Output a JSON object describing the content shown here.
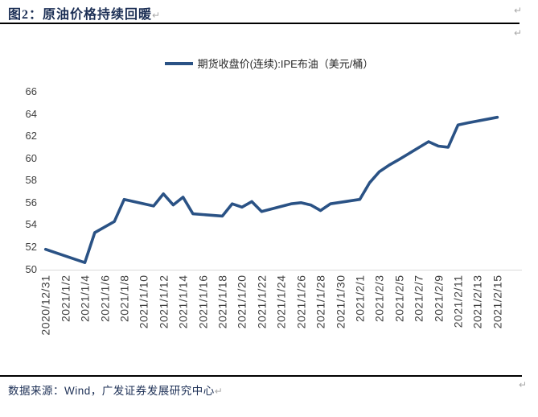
{
  "page": {
    "title": "图2：原油价格持续回暖",
    "footer": "数据来源：Wind，广发证券发展研究中心",
    "return_mark": "↵"
  },
  "chart_data": {
    "type": "line",
    "title": "图2：原油价格持续回暖",
    "legend": [
      "期货收盘价(连续):IPE布油（美元/桶）"
    ],
    "legend_position": "top",
    "grid": false,
    "ylabel": "",
    "xlabel": "",
    "ylim": [
      50,
      66
    ],
    "y_ticks": [
      66,
      64,
      62,
      60,
      58,
      56,
      54,
      52,
      50
    ],
    "x_ticks": [
      "2020/12/31",
      "2021/1/2",
      "2021/1/4",
      "2021/1/6",
      "2021/1/8",
      "2021/1/10",
      "2021/1/12",
      "2021/1/14",
      "2021/1/16",
      "2021/1/18",
      "2021/1/20",
      "2021/1/22",
      "2021/1/24",
      "2021/1/26",
      "2021/1/28",
      "2021/1/30",
      "2021/2/1",
      "2021/2/3",
      "2021/2/5",
      "2021/2/7",
      "2021/2/9",
      "2021/2/11",
      "2021/2/13",
      "2021/2/15"
    ],
    "series": [
      {
        "name": "期货收盘价(连续):IPE布油（美元/桶）",
        "color": "#2A5285",
        "x": [
          "2020/12/31",
          "2021/1/4",
          "2021/1/5",
          "2021/1/6",
          "2021/1/7",
          "2021/1/8",
          "2021/1/11",
          "2021/1/12",
          "2021/1/13",
          "2021/1/14",
          "2021/1/15",
          "2021/1/18",
          "2021/1/19",
          "2021/1/20",
          "2021/1/21",
          "2021/1/22",
          "2021/1/25",
          "2021/1/26",
          "2021/1/27",
          "2021/1/28",
          "2021/1/29",
          "2021/2/1",
          "2021/2/2",
          "2021/2/3",
          "2021/2/4",
          "2021/2/5",
          "2021/2/8",
          "2021/2/9",
          "2021/2/10",
          "2021/2/11",
          "2021/2/12",
          "2021/2/15"
        ],
        "values": [
          51.8,
          50.6,
          53.3,
          53.8,
          54.3,
          56.3,
          55.7,
          56.8,
          55.8,
          56.5,
          55.0,
          54.8,
          55.9,
          55.6,
          56.1,
          55.2,
          55.9,
          56.0,
          55.8,
          55.3,
          55.9,
          56.3,
          57.8,
          58.8,
          59.4,
          59.9,
          61.5,
          61.1,
          61.0,
          63.0,
          63.2,
          63.7
        ]
      }
    ],
    "axis_line_color": "#d9d9d9",
    "tick_label_color": "#3f3f3f"
  }
}
